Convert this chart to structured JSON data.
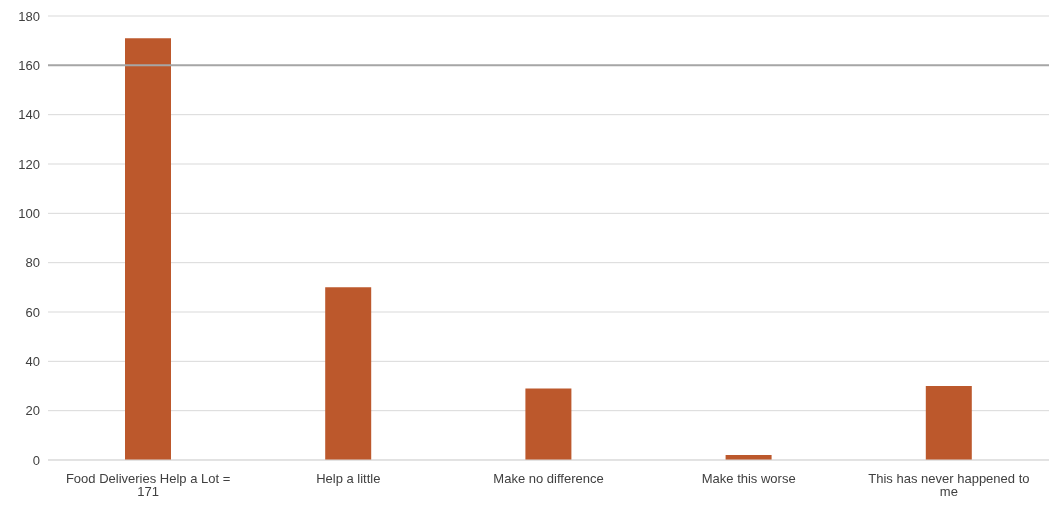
{
  "chart_data": {
    "type": "bar",
    "categories": [
      "Food Deliveries Help a Lot = 171",
      "Help a little",
      "Make no difference",
      "Make this worse",
      "This has never happened to me"
    ],
    "values": [
      171,
      70,
      29,
      2,
      30
    ],
    "color": "#bc582c",
    "ylim": [
      0,
      180
    ],
    "yticks": [
      0,
      20,
      40,
      60,
      80,
      100,
      120,
      140,
      160,
      180
    ],
    "grid": "y",
    "ref_lines": [
      {
        "axis": "y",
        "value": 160,
        "color": "#a6a6a6"
      }
    ]
  }
}
